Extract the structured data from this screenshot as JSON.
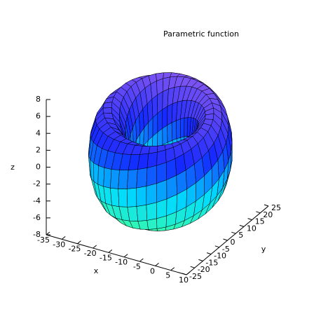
{
  "chart_data": {
    "type": "surface",
    "title": "Parametric function",
    "xlabel": "x",
    "ylabel": "y",
    "zlabel": "z",
    "xlim": [
      -35,
      10
    ],
    "ylim": [
      -25,
      25
    ],
    "zlim": [
      -8,
      8
    ],
    "xticks": [
      -35,
      -30,
      -25,
      -20,
      -15,
      -10,
      -5,
      0,
      5,
      10
    ],
    "yticks": [
      -25,
      -20,
      -15,
      -10,
      -5,
      0,
      5,
      10,
      15,
      20,
      25
    ],
    "zticks": [
      -8,
      -6,
      -4,
      -2,
      0,
      2,
      4,
      6,
      8
    ]
  }
}
